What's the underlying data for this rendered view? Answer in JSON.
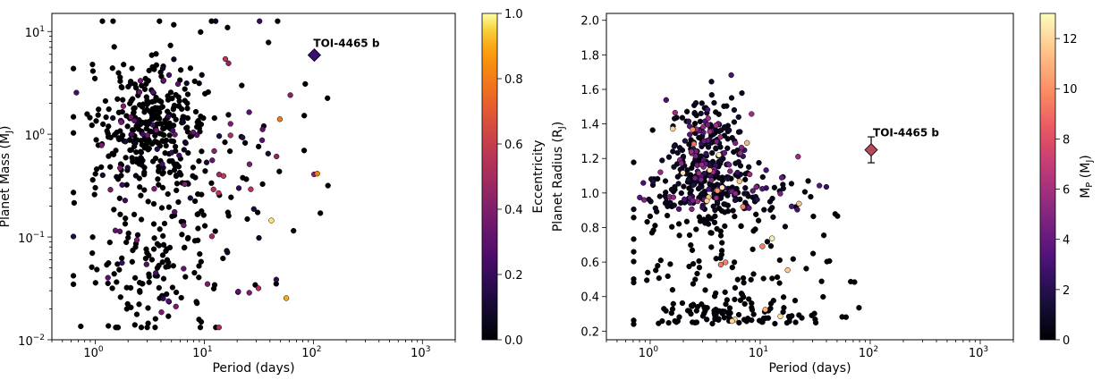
{
  "chart_data": [
    {
      "type": "scatter",
      "xlabel": "Period (days)",
      "ylabel": "Planet Mass (M$_J$)",
      "ylabel_parts": {
        "main": "Planet Mass (M",
        "sub": "J",
        "close": ")"
      },
      "xscale": "log",
      "yscale": "log",
      "xlim": [
        0.4,
        2000
      ],
      "ylim": [
        0.01,
        15
      ],
      "xticks": [
        1,
        10,
        100,
        1000
      ],
      "xtick_labels": [
        {
          "base": "10",
          "exp": "0"
        },
        {
          "base": "10",
          "exp": "1"
        },
        {
          "base": "10",
          "exp": "2"
        },
        {
          "base": "10",
          "exp": "3"
        }
      ],
      "yticks": [
        0.01,
        0.1,
        1,
        10
      ],
      "ytick_labels": [
        {
          "base": "10",
          "exp": "−2"
        },
        {
          "base": "10",
          "exp": "−1"
        },
        {
          "base": "10",
          "exp": "0"
        },
        {
          "base": "10",
          "exp": "1"
        }
      ],
      "colorbar": {
        "label": "Eccentricity",
        "range": [
          0,
          1
        ],
        "ticks": [
          0,
          0.2,
          0.4,
          0.6,
          0.8,
          1.0
        ],
        "tick_labels": [
          "0.0",
          "0.2",
          "0.4",
          "0.6",
          "0.8",
          "1.0"
        ],
        "colormap": "inferno"
      },
      "highlight": {
        "name": "TOI-4465 b",
        "x": 102,
        "y": 5.9,
        "color": "#3a0f6e",
        "marker": "diamond"
      },
      "grid": false
    },
    {
      "type": "scatter",
      "xlabel": "Period (days)",
      "ylabel": "Planet Radius (R$_J$)",
      "ylabel_parts": {
        "main": "Planet Radius (R",
        "sub": "J",
        "close": ")"
      },
      "xscale": "log",
      "yscale": "linear",
      "xlim": [
        0.4,
        2000
      ],
      "ylim": [
        0.15,
        2.04
      ],
      "xticks": [
        1,
        10,
        100,
        1000
      ],
      "xtick_labels": [
        {
          "base": "10",
          "exp": "0"
        },
        {
          "base": "10",
          "exp": "1"
        },
        {
          "base": "10",
          "exp": "2"
        },
        {
          "base": "10",
          "exp": "3"
        }
      ],
      "yticks": [
        0.2,
        0.4,
        0.6,
        0.8,
        1.0,
        1.2,
        1.4,
        1.6,
        1.8,
        2.0
      ],
      "ytick_labels": [
        "0.2",
        "0.4",
        "0.6",
        "0.8",
        "1.0",
        "1.2",
        "1.4",
        "1.6",
        "1.8",
        "2.0"
      ],
      "colorbar": {
        "label": "M$_P$ (M$_J$)",
        "label_parts": {
          "a": "M",
          "a_sub": "P",
          "b": " (M",
          "b_sub": "J",
          "c": ")"
        },
        "range": [
          0,
          13
        ],
        "ticks": [
          0,
          2,
          4,
          6,
          8,
          10,
          12
        ],
        "tick_labels": [
          "0",
          "2",
          "4",
          "6",
          "8",
          "10",
          "12"
        ],
        "colormap": "magma"
      },
      "highlight": {
        "name": "TOI-4465 b",
        "x": 102,
        "y": 1.25,
        "yerr": 0.075,
        "color": "#b5485a",
        "marker": "diamond"
      },
      "grid": false
    }
  ]
}
